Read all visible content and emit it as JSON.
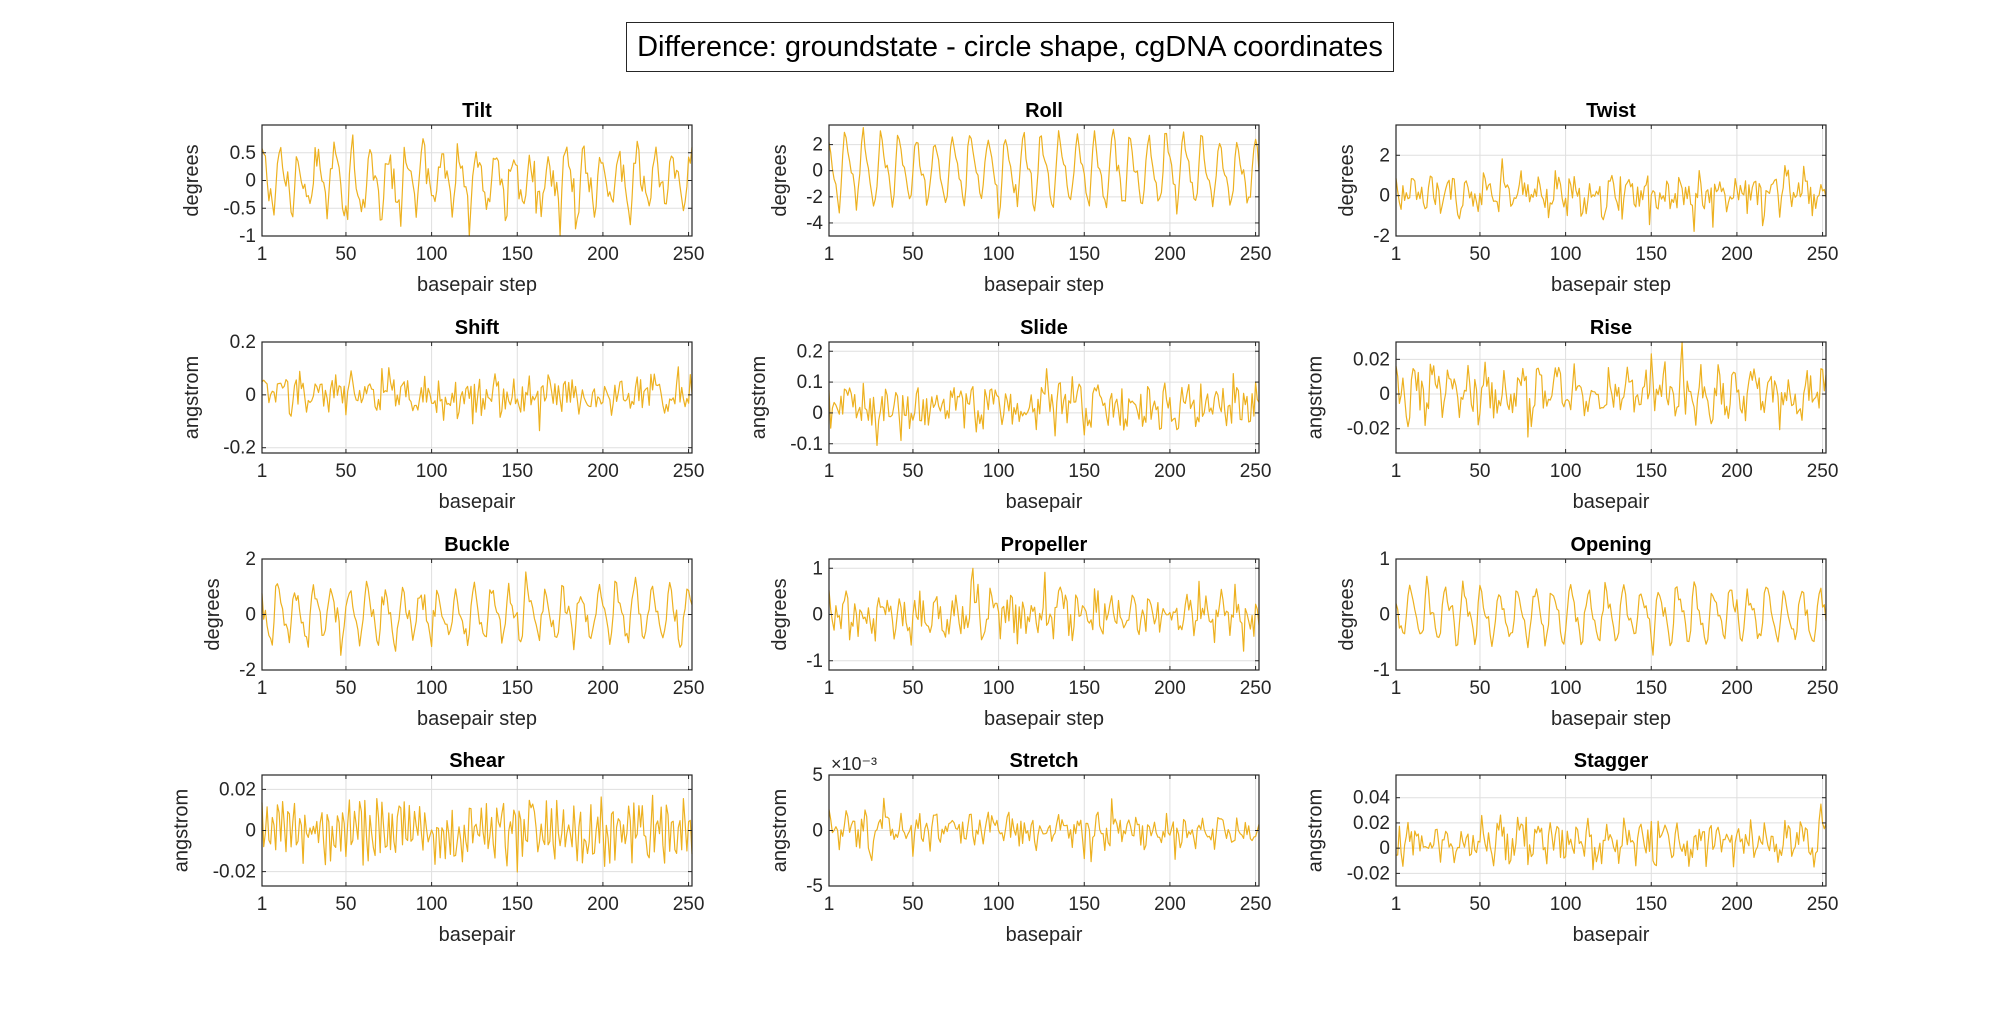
{
  "figure_title": "Difference: groundstate - circle shape, cgDNA coordinates",
  "colors": {
    "line": "#EDB120",
    "axis": "#262626",
    "grid": "#DFDFDF"
  },
  "chart_data": [
    {
      "type": "line",
      "title": "Tilt",
      "xlabel": "basepair step",
      "ylabel": "degrees",
      "xlim": [
        1,
        252
      ],
      "xticks": [
        1,
        50,
        100,
        150,
        200,
        250
      ],
      "ylim": [
        -1,
        1
      ],
      "yticks": [
        -1,
        -0.5,
        0,
        0.5
      ],
      "ytick_labels": [
        "-1",
        "-0.5",
        "0",
        "0.5"
      ],
      "n": 252,
      "pattern": {
        "period": 10.4,
        "amplitude": 0.45,
        "noise": 0.28,
        "phase": 0.3
      },
      "exponent": ""
    },
    {
      "type": "line",
      "title": "Roll",
      "xlabel": "basepair step",
      "ylabel": "degrees",
      "xlim": [
        1,
        252
      ],
      "xticks": [
        1,
        50,
        100,
        150,
        200,
        250
      ],
      "ylim": [
        -5,
        3.5
      ],
      "yticks": [
        -4,
        -2,
        0,
        2
      ],
      "ytick_labels": [
        "-4",
        "-2",
        "0",
        "2"
      ],
      "n": 252,
      "pattern": {
        "period": 10.4,
        "amplitude": 2.2,
        "noise": 0.6,
        "phase": 1.1
      },
      "exponent": ""
    },
    {
      "type": "line",
      "title": "Twist",
      "xlabel": "basepair step",
      "ylabel": "degrees",
      "xlim": [
        1,
        252
      ],
      "xticks": [
        1,
        50,
        100,
        150,
        200,
        250
      ],
      "ylim": [
        -2,
        3.5
      ],
      "yticks": [
        -2,
        0,
        2
      ],
      "ytick_labels": [
        "-2",
        "0",
        "2"
      ],
      "n": 252,
      "pattern": {
        "period": 10.4,
        "amplitude": 0.5,
        "noise": 0.7,
        "phase": 0.6
      },
      "exponent": ""
    },
    {
      "type": "line",
      "title": "Shift",
      "xlabel": "basepair",
      "ylabel": "angstrom",
      "xlim": [
        1,
        252
      ],
      "xticks": [
        1,
        50,
        100,
        150,
        200,
        250
      ],
      "ylim": [
        -0.22,
        0.2
      ],
      "yticks": [
        -0.2,
        0,
        0.2
      ],
      "ytick_labels": [
        "-0.2",
        "0",
        "0.2"
      ],
      "n": 252,
      "pattern": {
        "period": 10.4,
        "amplitude": 0.02,
        "noise": 0.06,
        "phase": 0.2
      },
      "exponent": ""
    },
    {
      "type": "line",
      "title": "Slide",
      "xlabel": "basepair",
      "ylabel": "angstrom",
      "xlim": [
        1,
        252
      ],
      "xticks": [
        1,
        50,
        100,
        150,
        200,
        250
      ],
      "ylim": [
        -0.13,
        0.23
      ],
      "yticks": [
        -0.1,
        0,
        0.1,
        0.2
      ],
      "ytick_labels": [
        "-0.1",
        "0",
        "0.1",
        "0.2"
      ],
      "n": 252,
      "pattern": {
        "period": 10.4,
        "amplitude": 0.02,
        "noise": 0.06,
        "phase": 0.9,
        "offset": 0.02
      },
      "exponent": ""
    },
    {
      "type": "line",
      "title": "Rise",
      "xlabel": "basepair",
      "ylabel": "angstrom",
      "xlim": [
        1,
        252
      ],
      "xticks": [
        1,
        50,
        100,
        150,
        200,
        250
      ],
      "ylim": [
        -0.034,
        0.03
      ],
      "yticks": [
        -0.02,
        0,
        0.02
      ],
      "ytick_labels": [
        "-0.02",
        "0",
        "0.02"
      ],
      "n": 252,
      "pattern": {
        "period": 10.4,
        "amplitude": 0.008,
        "noise": 0.011,
        "phase": 0.4
      },
      "exponent": ""
    },
    {
      "type": "line",
      "title": "Buckle",
      "xlabel": "basepair step",
      "ylabel": "degrees",
      "xlim": [
        1,
        252
      ],
      "xticks": [
        1,
        50,
        100,
        150,
        200,
        250
      ],
      "ylim": [
        -2,
        2
      ],
      "yticks": [
        -2,
        0,
        2
      ],
      "ytick_labels": [
        "-2",
        "0",
        "2"
      ],
      "n": 252,
      "pattern": {
        "period": 10.4,
        "amplitude": 0.8,
        "noise": 0.35,
        "phase": 1.4
      },
      "exponent": ""
    },
    {
      "type": "line",
      "title": "Propeller",
      "xlabel": "basepair step",
      "ylabel": "degrees",
      "xlim": [
        1,
        252
      ],
      "xticks": [
        1,
        50,
        100,
        150,
        200,
        250
      ],
      "ylim": [
        -1.2,
        1.2
      ],
      "yticks": [
        -1,
        0,
        1
      ],
      "ytick_labels": [
        "-1",
        "0",
        "1"
      ],
      "n": 252,
      "pattern": {
        "period": 10.4,
        "amplitude": 0.2,
        "noise": 0.38,
        "phase": 0.7
      },
      "exponent": ""
    },
    {
      "type": "line",
      "title": "Opening",
      "xlabel": "basepair step",
      "ylabel": "degrees",
      "xlim": [
        1,
        252
      ],
      "xticks": [
        1,
        50,
        100,
        150,
        200,
        250
      ],
      "ylim": [
        -1,
        1
      ],
      "yticks": [
        -1,
        0,
        1
      ],
      "ytick_labels": [
        "-1",
        "0",
        "1"
      ],
      "n": 252,
      "pattern": {
        "period": 10.4,
        "amplitude": 0.4,
        "noise": 0.14,
        "phase": 2.0
      },
      "exponent": ""
    },
    {
      "type": "line",
      "title": "Shear",
      "xlabel": "basepair",
      "ylabel": "angstrom",
      "xlim": [
        1,
        252
      ],
      "xticks": [
        1,
        50,
        100,
        150,
        200,
        250
      ],
      "ylim": [
        -0.027,
        0.027
      ],
      "yticks": [
        -0.02,
        0,
        0.02
      ],
      "ytick_labels": [
        "-0.02",
        "0",
        "0.02"
      ],
      "n": 252,
      "pattern": {
        "period": 3.2,
        "amplitude": 0.009,
        "noise": 0.009,
        "phase": 0.1
      },
      "exponent": ""
    },
    {
      "type": "line",
      "title": "Stretch",
      "xlabel": "basepair",
      "ylabel": "angstrom",
      "xlim": [
        1,
        252
      ],
      "xticks": [
        1,
        50,
        100,
        150,
        200,
        250
      ],
      "ylim": [
        -5,
        5
      ],
      "yticks": [
        -5,
        0,
        5
      ],
      "ytick_labels": [
        "-5",
        "0",
        "5"
      ],
      "n": 252,
      "pattern": {
        "period": 10.4,
        "amplitude": 0.6,
        "noise": 1.2,
        "phase": 0.5
      },
      "exponent": "×10⁻³"
    },
    {
      "type": "line",
      "title": "Stagger",
      "xlabel": "basepair",
      "ylabel": "angstrom",
      "xlim": [
        1,
        252
      ],
      "xticks": [
        1,
        50,
        100,
        150,
        200,
        250
      ],
      "ylim": [
        -0.03,
        0.058
      ],
      "yticks": [
        -0.02,
        0,
        0.02,
        0.04
      ],
      "ytick_labels": [
        "-0.02",
        "0",
        "0.02",
        "0.04"
      ],
      "n": 252,
      "pattern": {
        "period": 10.4,
        "amplitude": 0.006,
        "noise": 0.014,
        "phase": 1.7,
        "offset": 0.005
      },
      "exponent": ""
    }
  ]
}
